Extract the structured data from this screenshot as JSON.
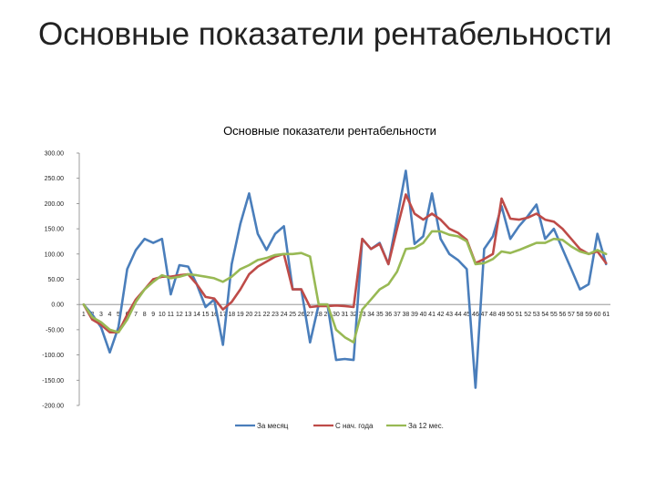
{
  "slide": {
    "title": "Основные показатели рентабельности"
  },
  "colors": {
    "series": [
      "#4a7ebb",
      "#be4b48",
      "#98b954"
    ],
    "axis": "#868686"
  },
  "chart_data": {
    "type": "line",
    "title": "Основные показатели рентабельности",
    "xlabel": "",
    "ylabel": "",
    "ylim": [
      -200,
      300
    ],
    "y_ticks": [
      -200,
      -150,
      -100,
      -50,
      0,
      50,
      100,
      150,
      200,
      250,
      300
    ],
    "y_tick_labels": [
      "-200.00",
      "-150.00",
      "-100.00",
      "-50.00",
      "0.00",
      "50.00",
      "100.00",
      "150.00",
      "200.00",
      "250.00",
      "300.00"
    ],
    "grid": false,
    "legend_position": "bottom",
    "categories": [
      "1",
      "2",
      "3",
      "4",
      "5",
      "6",
      "7",
      "8",
      "9",
      "10",
      "11",
      "12",
      "13",
      "14",
      "15",
      "16",
      "17",
      "18",
      "19",
      "20",
      "21",
      "22",
      "23",
      "24",
      "25",
      "26",
      "27",
      "28",
      "29",
      "30",
      "31",
      "32",
      "33",
      "34",
      "35",
      "36",
      "37",
      "38",
      "39",
      "40",
      "41",
      "42",
      "43",
      "44",
      "45",
      "46",
      "47",
      "48",
      "49",
      "50",
      "51",
      "52",
      "53",
      "54",
      "55",
      "56",
      "57",
      "58",
      "59",
      "60",
      "61"
    ],
    "series": [
      {
        "name": "За месяц",
        "values": [
          0,
          -20,
          -45,
          -95,
          -45,
          70,
          108,
          130,
          122,
          130,
          20,
          78,
          75,
          40,
          -5,
          10,
          -80,
          80,
          160,
          220,
          140,
          108,
          140,
          155,
          30,
          30,
          -75,
          0,
          0,
          -110,
          -108,
          -110,
          130,
          110,
          122,
          80,
          170,
          265,
          120,
          135,
          220,
          130,
          100,
          88,
          70,
          -165,
          110,
          135,
          195,
          130,
          155,
          175,
          198,
          130,
          150,
          110,
          70,
          30,
          40,
          140,
          80
        ]
      },
      {
        "name": "С нач. года",
        "values": [
          0,
          -30,
          -40,
          -55,
          -55,
          -20,
          10,
          30,
          50,
          55,
          55,
          58,
          60,
          40,
          15,
          12,
          -10,
          5,
          30,
          60,
          75,
          85,
          95,
          100,
          30,
          30,
          -5,
          -3,
          -3,
          -2,
          -3,
          -5,
          130,
          110,
          120,
          80,
          150,
          218,
          180,
          168,
          180,
          168,
          150,
          142,
          128,
          82,
          90,
          100,
          210,
          170,
          168,
          172,
          180,
          168,
          164,
          150,
          130,
          110,
          100,
          105,
          82
        ]
      },
      {
        "name": "За 12 мес.",
        "values": [
          0,
          -25,
          -35,
          -50,
          -55,
          -30,
          5,
          30,
          45,
          58,
          52,
          55,
          60,
          58,
          55,
          52,
          45,
          55,
          70,
          78,
          88,
          92,
          98,
          100,
          100,
          102,
          95,
          0,
          0,
          -50,
          -65,
          -75,
          -10,
          10,
          30,
          40,
          65,
          110,
          112,
          122,
          145,
          145,
          138,
          135,
          125,
          80,
          82,
          90,
          105,
          102,
          108,
          115,
          122,
          122,
          130,
          128,
          115,
          105,
          100,
          108,
          100
        ]
      }
    ]
  }
}
